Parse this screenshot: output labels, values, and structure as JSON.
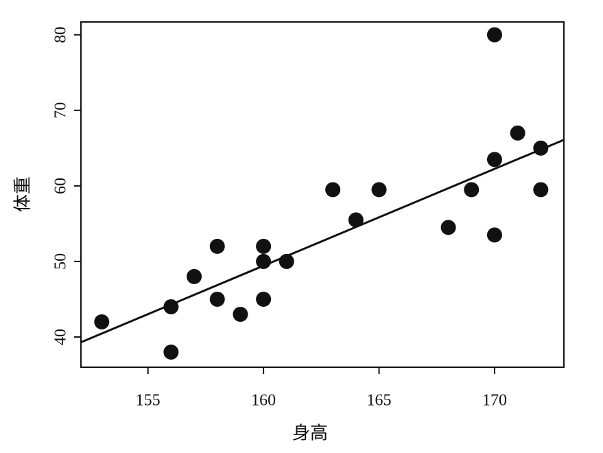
{
  "chart_data": {
    "type": "scatter",
    "x_label": "身高",
    "y_label": "体重",
    "x": [
      153,
      156,
      156,
      157,
      158,
      158,
      159,
      160,
      160,
      160,
      161,
      163,
      164,
      165,
      168,
      169,
      170,
      170,
      170,
      171,
      172,
      172
    ],
    "series": [
      {
        "color": "#111111",
        "values": [
          42,
          44,
          38,
          48,
          52,
          45,
          43,
          52,
          50,
          45,
          50,
          59.5,
          55.5,
          59.5,
          54.5,
          59.5,
          80,
          63.5,
          53.5,
          67,
          65,
          59.5
        ]
      }
    ],
    "fit_line": {
      "x": [
        152.1,
        173
      ],
      "y": [
        39.3,
        66.1
      ],
      "color": "#111111"
    },
    "xlim": [
      152.1,
      173
    ],
    "ylim": [
      36,
      81.7
    ],
    "xticks": [
      155,
      160,
      165,
      170
    ],
    "yticks": [
      40,
      50,
      60,
      70,
      80
    ],
    "grid": false
  }
}
